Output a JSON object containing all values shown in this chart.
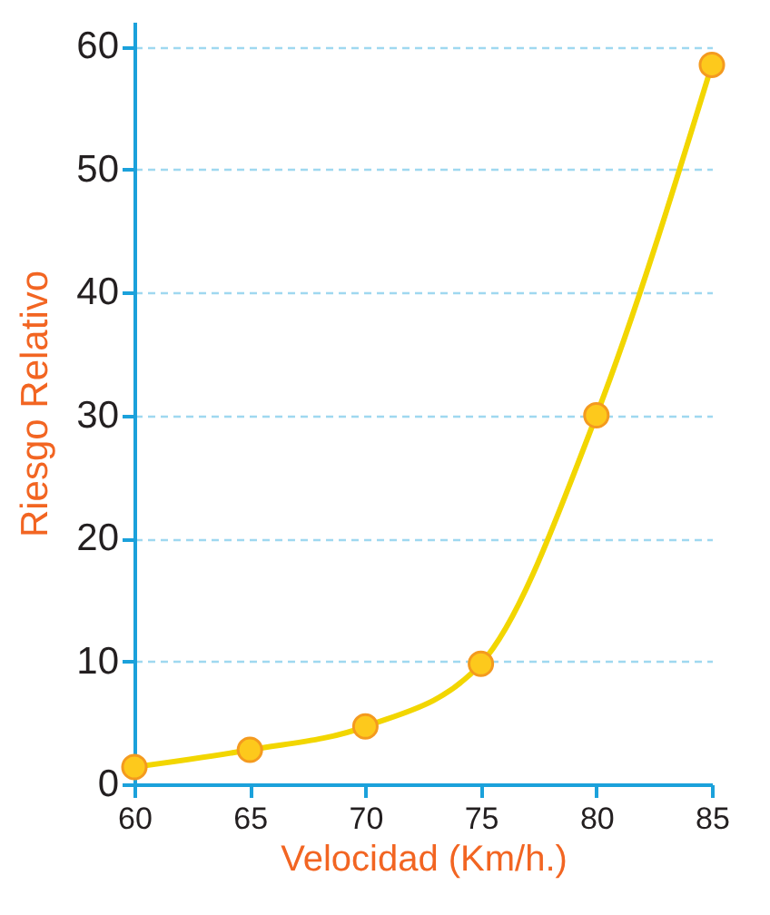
{
  "chart_data": {
    "type": "line",
    "xlabel": "Velocidad (Km/h.)",
    "ylabel": "Riesgo Relativo",
    "x": [
      60,
      65,
      70,
      75,
      80,
      85
    ],
    "series": [
      {
        "color": "#f2d600",
        "values": [
          1.4,
          2.8,
          4.7,
          9.8,
          30,
          58.5
        ]
      }
    ],
    "xlim": [
      60,
      85
    ],
    "xticks": [
      60,
      65,
      70,
      75,
      80,
      85
    ],
    "ylim": [
      0,
      62
    ],
    "yticks": [
      0,
      10,
      20,
      30,
      40,
      50,
      60
    ],
    "grid": "y",
    "marker": "circle"
  }
}
